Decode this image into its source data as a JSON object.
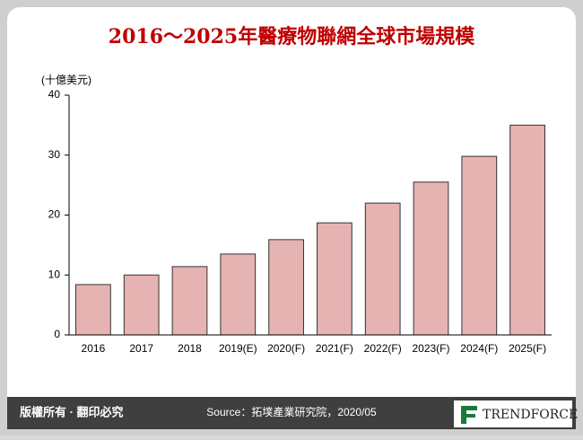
{
  "chart_data": {
    "type": "bar",
    "title": "2016～2025年醫療物聯網全球市場規模",
    "y_label": "(十億美元)",
    "categories": [
      "2016",
      "2017",
      "2018",
      "2019(E)",
      "2020(F)",
      "2021(F)",
      "2022(F)",
      "2023(F)",
      "2024(F)",
      "2025(F)"
    ],
    "values": [
      8.4,
      10,
      11.4,
      13.5,
      15.9,
      18.7,
      22,
      25.5,
      29.8,
      35
    ],
    "color": "#e6b3b3",
    "ylim": [
      0,
      40
    ],
    "yticks": [
      0,
      10,
      20,
      30,
      40
    ],
    "grid": false
  },
  "footer": {
    "copyright": "版權所有 · 翻印必究",
    "source": "Source：拓墣產業研究院，2020/05",
    "logo": "TRENDFORCE"
  }
}
